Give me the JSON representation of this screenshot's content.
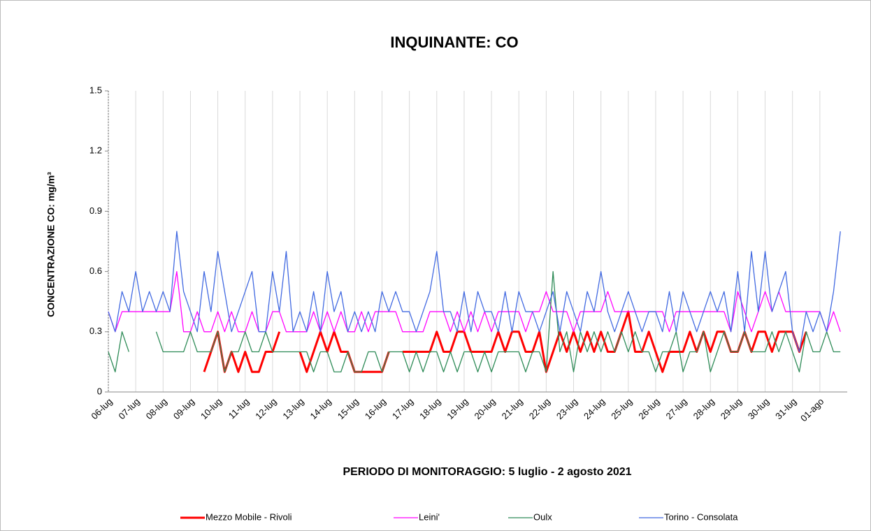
{
  "chart_data": {
    "type": "line",
    "title": "INQUINANTE: CO",
    "x_label": "PERIODO DI MONITORAGGIO: 5 luglio - 2 agosto 2021",
    "y_label": "CONCENTRAZIONE CO: mg/m³",
    "categories": [
      "06-lug",
      null,
      null,
      null,
      "07-lug",
      null,
      null,
      null,
      "08-lug",
      null,
      null,
      null,
      "09-lug",
      null,
      null,
      null,
      "10-lug",
      null,
      null,
      null,
      "11-lug",
      null,
      null,
      null,
      "12-lug",
      null,
      null,
      null,
      "13-lug",
      null,
      null,
      null,
      "14-lug",
      null,
      null,
      null,
      "15-lug",
      null,
      null,
      null,
      "16-lug",
      null,
      null,
      null,
      "17-lug",
      null,
      null,
      null,
      "18-lug",
      null,
      null,
      null,
      "19-lug",
      null,
      null,
      null,
      "20-lug",
      null,
      null,
      null,
      "21-lug",
      null,
      null,
      null,
      "22-lug",
      null,
      null,
      null,
      "23-lug",
      null,
      null,
      null,
      "24-lug",
      null,
      null,
      null,
      "25-lug",
      null,
      null,
      null,
      "26-lug",
      null,
      null,
      null,
      "27-lug",
      null,
      null,
      null,
      "28-lug",
      null,
      null,
      null,
      "29-lug",
      null,
      null,
      null,
      "30-lug",
      null,
      null,
      null,
      "31-lug",
      null,
      null,
      null,
      "01-ago",
      null,
      null,
      null
    ],
    "ylim": [
      0,
      1.5
    ],
    "yticks": [
      0,
      0.3,
      0.6,
      0.9,
      1.2,
      1.5
    ],
    "grid": true,
    "legend": "bottom",
    "series": [
      {
        "name": "Mezzo Mobile - Rivoli",
        "color": "#ff0000",
        "width": 3,
        "values": [
          null,
          null,
          null,
          null,
          null,
          null,
          null,
          null,
          null,
          null,
          null,
          null,
          null,
          null,
          0.1,
          0.2,
          0.3,
          0.1,
          0.2,
          0.1,
          0.2,
          0.1,
          0.1,
          0.2,
          0.2,
          0.3,
          null,
          null,
          0.2,
          0.1,
          0.2,
          0.3,
          0.2,
          0.3,
          0.2,
          0.2,
          0.1,
          0.1,
          0.1,
          0.1,
          0.1,
          0.2,
          null,
          0.2,
          0.2,
          0.2,
          0.2,
          0.2,
          0.3,
          0.2,
          0.2,
          0.3,
          0.3,
          0.2,
          0.2,
          0.2,
          0.2,
          0.3,
          0.2,
          0.3,
          0.3,
          0.2,
          0.2,
          0.3,
          0.1,
          0.2,
          0.3,
          0.2,
          0.3,
          0.2,
          0.3,
          0.2,
          0.3,
          0.2,
          0.2,
          0.3,
          0.4,
          0.2,
          0.2,
          0.3,
          0.2,
          0.1,
          0.2,
          0.2,
          0.2,
          0.3,
          0.2,
          0.3,
          0.2,
          0.3,
          0.3,
          0.2,
          0.2,
          0.3,
          0.2,
          0.3,
          0.3,
          0.2,
          0.3,
          0.3,
          0.3,
          0.2,
          0.3,
          null,
          null,
          null,
          null,
          null
        ]
      },
      {
        "name": "Leini'",
        "color": "#ff00ff",
        "width": 1.3,
        "values": [
          0.4,
          0.3,
          0.4,
          0.4,
          0.4,
          0.4,
          0.4,
          0.4,
          0.4,
          0.4,
          0.6,
          0.3,
          0.3,
          0.4,
          0.3,
          0.3,
          0.4,
          0.3,
          0.4,
          0.3,
          0.3,
          0.4,
          0.3,
          0.3,
          0.4,
          0.4,
          0.3,
          0.3,
          0.3,
          0.3,
          0.4,
          0.3,
          0.4,
          0.3,
          0.4,
          0.3,
          0.3,
          0.4,
          0.3,
          0.4,
          0.4,
          0.4,
          0.4,
          0.3,
          0.3,
          0.3,
          0.3,
          0.4,
          0.4,
          0.4,
          0.3,
          0.4,
          0.3,
          0.4,
          0.3,
          0.4,
          0.3,
          0.4,
          0.4,
          0.4,
          0.4,
          0.3,
          0.4,
          0.4,
          0.5,
          0.4,
          0.4,
          0.4,
          0.3,
          0.4,
          0.4,
          0.4,
          0.4,
          0.5,
          0.4,
          0.4,
          0.4,
          0.4,
          0.4,
          0.4,
          0.4,
          0.4,
          0.3,
          0.4,
          0.4,
          0.4,
          0.4,
          0.4,
          0.4,
          0.4,
          0.4,
          0.3,
          0.5,
          0.4,
          0.3,
          0.4,
          0.5,
          0.4,
          0.5,
          0.4,
          0.4,
          0.4,
          0.4,
          0.4,
          0.4,
          0.3,
          0.4,
          0.3
        ]
      },
      {
        "name": "Oulx",
        "color": "#2e8b57",
        "width": 1.3,
        "values": [
          0.2,
          0.1,
          0.3,
          0.2,
          null,
          null,
          null,
          0.3,
          0.2,
          0.2,
          0.2,
          0.2,
          0.3,
          0.2,
          0.2,
          0.2,
          0.3,
          0.1,
          0.2,
          0.2,
          0.3,
          0.2,
          0.2,
          0.3,
          0.2,
          0.2,
          0.2,
          0.2,
          0.2,
          0.2,
          0.1,
          0.2,
          0.2,
          0.1,
          0.1,
          0.2,
          0.1,
          0.1,
          0.2,
          0.2,
          0.1,
          0.2,
          0.2,
          0.2,
          0.1,
          0.2,
          0.1,
          0.2,
          0.2,
          0.1,
          0.2,
          0.1,
          0.2,
          0.2,
          0.1,
          0.2,
          0.1,
          0.2,
          0.2,
          0.2,
          0.2,
          0.1,
          0.2,
          0.2,
          0.1,
          0.6,
          0.2,
          0.3,
          0.1,
          0.3,
          0.2,
          0.3,
          0.2,
          0.3,
          0.2,
          0.3,
          0.2,
          0.3,
          0.2,
          0.2,
          0.1,
          0.2,
          0.2,
          0.3,
          0.1,
          0.2,
          0.2,
          0.3,
          0.1,
          0.2,
          0.3,
          0.2,
          0.2,
          0.3,
          0.2,
          0.2,
          0.2,
          0.3,
          0.2,
          0.3,
          0.2,
          0.1,
          0.3,
          0.2,
          0.2,
          0.3,
          0.2,
          0.2
        ]
      },
      {
        "name": "Torino - Consolata",
        "color": "#4169e1",
        "width": 1.3,
        "values": [
          0.4,
          0.3,
          0.5,
          0.4,
          0.6,
          0.4,
          0.5,
          0.4,
          0.5,
          0.4,
          0.8,
          0.5,
          0.4,
          0.3,
          0.6,
          0.4,
          0.7,
          0.5,
          0.3,
          0.4,
          0.5,
          0.6,
          0.3,
          0.3,
          0.6,
          0.4,
          0.7,
          0.3,
          0.4,
          0.3,
          0.5,
          0.3,
          0.6,
          0.4,
          0.5,
          0.3,
          0.4,
          0.3,
          0.4,
          0.3,
          0.5,
          0.4,
          0.5,
          0.4,
          0.4,
          0.3,
          0.4,
          0.5,
          0.7,
          0.4,
          0.4,
          0.3,
          0.5,
          0.3,
          0.5,
          0.4,
          0.4,
          0.3,
          0.5,
          0.3,
          0.5,
          0.4,
          0.4,
          0.3,
          0.4,
          0.5,
          0.3,
          0.5,
          0.4,
          0.3,
          0.5,
          0.4,
          0.6,
          0.4,
          0.3,
          0.4,
          0.5,
          0.4,
          0.3,
          0.4,
          0.4,
          0.3,
          0.5,
          0.3,
          0.5,
          0.4,
          0.3,
          0.4,
          0.5,
          0.4,
          0.5,
          0.3,
          0.6,
          0.3,
          0.7,
          0.4,
          0.7,
          0.4,
          0.5,
          0.6,
          0.3,
          0.2,
          0.4,
          0.3,
          0.4,
          0.3,
          0.5,
          0.8
        ]
      }
    ]
  }
}
